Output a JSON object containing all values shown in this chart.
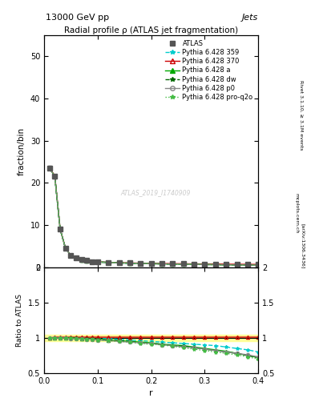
{
  "title_top": "13000 GeV pp",
  "title_right": "Jets",
  "plot_title": "Radial profile ρ (ATLAS jet fragmentation)",
  "xlabel": "r",
  "ylabel_main": "fraction/bin",
  "ylabel_ratio": "Ratio to ATLAS",
  "watermark": "ATLAS_2019_I1740909",
  "right_label": "Rivet 3.1.10, ≥ 3.1M events",
  "arxiv_label": "[arXiv:1306.3436]",
  "mcplots_label": "mcplots.cern.ch",
  "xlim": [
    0.0,
    0.4
  ],
  "ylim_main": [
    0.0,
    55.0
  ],
  "ylim_ratio": [
    0.5,
    2.0
  ],
  "r_values": [
    0.01,
    0.02,
    0.03,
    0.04,
    0.05,
    0.06,
    0.07,
    0.08,
    0.09,
    0.1,
    0.12,
    0.14,
    0.16,
    0.18,
    0.2,
    0.22,
    0.24,
    0.26,
    0.28,
    0.3,
    0.32,
    0.34,
    0.36,
    0.38,
    0.4
  ],
  "atlas_y": [
    23.5,
    21.5,
    9.0,
    4.5,
    2.8,
    2.2,
    1.8,
    1.6,
    1.4,
    1.3,
    1.2,
    1.1,
    1.05,
    1.0,
    0.95,
    0.9,
    0.88,
    0.85,
    0.82,
    0.8,
    0.78,
    0.75,
    0.73,
    0.71,
    0.7
  ],
  "atlas_err": [
    0.5,
    0.4,
    0.2,
    0.1,
    0.05,
    0.04,
    0.03,
    0.03,
    0.02,
    0.02,
    0.02,
    0.02,
    0.02,
    0.02,
    0.02,
    0.02,
    0.02,
    0.02,
    0.02,
    0.02,
    0.02,
    0.02,
    0.02,
    0.02,
    0.02
  ],
  "py359_ratio": [
    1.0,
    1.0,
    1.0,
    1.0,
    1.0,
    1.0,
    1.0,
    1.0,
    0.99,
    0.99,
    0.99,
    0.98,
    0.97,
    0.96,
    0.95,
    0.94,
    0.93,
    0.92,
    0.91,
    0.9,
    0.89,
    0.87,
    0.85,
    0.83,
    0.8
  ],
  "py370_ratio": [
    1.0,
    1.01,
    1.01,
    1.01,
    1.01,
    1.01,
    1.01,
    1.01,
    1.01,
    1.01,
    1.01,
    1.01,
    1.01,
    1.01,
    1.01,
    1.01,
    1.01,
    1.01,
    1.01,
    1.01,
    1.01,
    1.01,
    1.01,
    1.01,
    1.01
  ],
  "pya_ratio": [
    1.0,
    1.0,
    1.0,
    1.0,
    1.0,
    1.0,
    0.99,
    0.99,
    0.99,
    0.98,
    0.97,
    0.96,
    0.95,
    0.94,
    0.93,
    0.91,
    0.9,
    0.89,
    0.87,
    0.85,
    0.83,
    0.81,
    0.78,
    0.75,
    0.72
  ],
  "pydw_ratio": [
    1.0,
    1.0,
    1.0,
    1.0,
    1.0,
    0.99,
    0.99,
    0.99,
    0.98,
    0.98,
    0.97,
    0.96,
    0.95,
    0.93,
    0.92,
    0.91,
    0.89,
    0.88,
    0.86,
    0.84,
    0.82,
    0.8,
    0.78,
    0.75,
    0.72
  ],
  "pyp0_ratio": [
    1.0,
    1.0,
    1.0,
    1.0,
    0.99,
    0.99,
    0.99,
    0.98,
    0.98,
    0.97,
    0.96,
    0.95,
    0.94,
    0.93,
    0.92,
    0.9,
    0.89,
    0.87,
    0.86,
    0.84,
    0.82,
    0.8,
    0.78,
    0.76,
    0.73
  ],
  "pyq2o_ratio": [
    1.0,
    1.0,
    1.0,
    1.0,
    1.0,
    0.99,
    0.99,
    0.98,
    0.98,
    0.97,
    0.96,
    0.95,
    0.94,
    0.92,
    0.91,
    0.9,
    0.88,
    0.86,
    0.84,
    0.82,
    0.8,
    0.78,
    0.76,
    0.73,
    0.7
  ],
  "color_359": "#00CCCC",
  "color_370": "#CC0000",
  "color_a": "#00AA00",
  "color_dw": "#006600",
  "color_p0": "#888888",
  "color_q2o": "#44BB44",
  "color_atlas_band": "#FFFF99",
  "atlas_band_ratio_low": 0.95,
  "atlas_band_ratio_high": 1.05
}
